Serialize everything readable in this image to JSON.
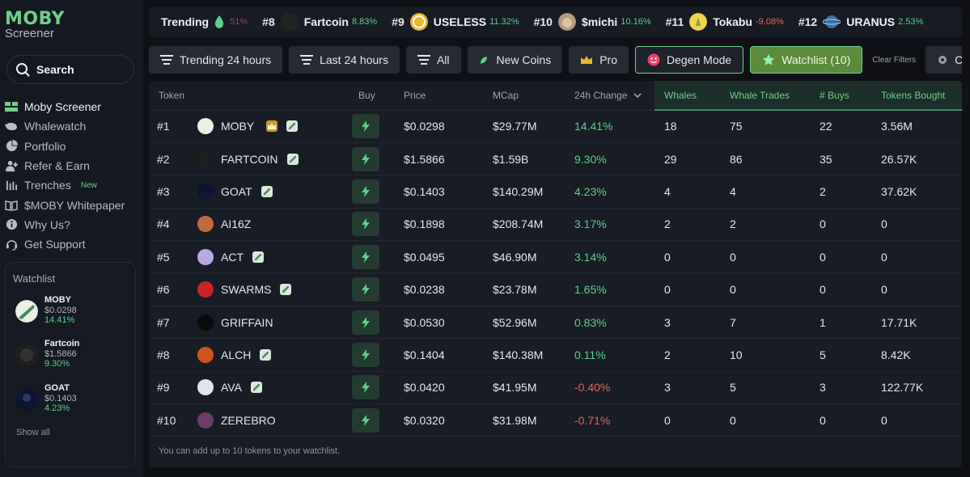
{
  "sidebar": {
    "logo_main": "MOBY",
    "logo_sub": "Screener",
    "search_label": "Search",
    "nav": [
      {
        "label": "Moby Screener",
        "icon": "moby-logo-icon"
      },
      {
        "label": "Whalewatch",
        "icon": "whale-icon"
      },
      {
        "label": "Portfolio",
        "icon": "pie-chart-icon"
      },
      {
        "label": "Refer & Earn",
        "icon": "person-add-icon"
      },
      {
        "label": "Trenches",
        "icon": "trench-icon",
        "tag": "New"
      },
      {
        "label": "$MOBY Whitepaper",
        "icon": "book-icon"
      },
      {
        "label": "Why Us?",
        "icon": "info-icon"
      },
      {
        "label": "Get Support",
        "icon": "headset-icon"
      }
    ],
    "watchlist": {
      "title": "Watchlist",
      "items": [
        {
          "name": "MOBY",
          "price": "$0.0298",
          "change": "14.41%"
        },
        {
          "name": "Fartcoin",
          "price": "$1.5866",
          "change": "9.30%"
        },
        {
          "name": "GOAT",
          "price": "$0.1403",
          "change": "4.23%"
        }
      ],
      "show_all": "Show all"
    }
  },
  "trending": {
    "label": "Trending",
    "faded_pct": "51%",
    "items": [
      {
        "rank": "#8",
        "name": "Fartcoin",
        "pct": "8.83%",
        "dir": "pos",
        "color": "#222222"
      },
      {
        "rank": "#9",
        "name": "USELESS",
        "pct": "11.32%",
        "dir": "pos",
        "color": "#e7b92f"
      },
      {
        "rank": "#10",
        "name": "$michi",
        "pct": "10.16%",
        "dir": "pos",
        "color": "#b79a7c"
      },
      {
        "rank": "#11",
        "name": "Tokabu",
        "pct": "-9.08%",
        "dir": "neg",
        "color": "#f0d44a"
      },
      {
        "rank": "#12",
        "name": "URANUS",
        "pct": "2.53%",
        "dir": "pos",
        "color": "#3c6f9d"
      }
    ]
  },
  "filters": {
    "trending24": "Trending 24 hours",
    "last24": "Last 24 hours",
    "all": "All",
    "new_coins": "New Coins",
    "pro": "Pro",
    "degen": "Degen Mode",
    "watchlist": "Watchlist (10)",
    "clear": "Clear Filters",
    "custom": "Custom"
  },
  "table": {
    "headers": {
      "token": "Token",
      "buy": "Buy",
      "price": "Price",
      "mcap": "MCap",
      "change": "24h Change",
      "whales": "Whales",
      "whale_trades": "Whale Trades",
      "buys": "# Buys",
      "tokens_bought": "Tokens Bought"
    },
    "rows": [
      {
        "rank": "#1",
        "name": "MOBY",
        "price": "$0.0298",
        "mcap": "$29.77M",
        "change": "14.41%",
        "dir": "pos",
        "whales": "18",
        "trades": "75",
        "buys": "22",
        "bought": "3.56M",
        "color": "#e9efe4"
      },
      {
        "rank": "#2",
        "name": "FARTCOIN",
        "price": "$1.5866",
        "mcap": "$1.59B",
        "change": "9.30%",
        "dir": "pos",
        "whales": "29",
        "trades": "86",
        "buys": "35",
        "bought": "26.57K",
        "color": "#1e1e1e"
      },
      {
        "rank": "#3",
        "name": "GOAT",
        "price": "$0.1403",
        "mcap": "$140.29M",
        "change": "4.23%",
        "dir": "pos",
        "whales": "4",
        "trades": "4",
        "buys": "2",
        "bought": "37.62K",
        "color": "#0d1630"
      },
      {
        "rank": "#4",
        "name": "AI16Z",
        "price": "$0.1898",
        "mcap": "$208.74M",
        "change": "3.17%",
        "dir": "pos",
        "whales": "2",
        "trades": "2",
        "buys": "0",
        "bought": "0",
        "color": "#c36a3a"
      },
      {
        "rank": "#5",
        "name": "ACT",
        "price": "$0.0495",
        "mcap": "$46.90M",
        "change": "3.14%",
        "dir": "pos",
        "whales": "0",
        "trades": "0",
        "buys": "0",
        "bought": "0",
        "color": "#b9a8e6"
      },
      {
        "rank": "#6",
        "name": "SWARMS",
        "price": "$0.0238",
        "mcap": "$23.78M",
        "change": "1.65%",
        "dir": "pos",
        "whales": "0",
        "trades": "0",
        "buys": "0",
        "bought": "0",
        "color": "#c8242a"
      },
      {
        "rank": "#7",
        "name": "GRIFFAIN",
        "price": "$0.0530",
        "mcap": "$52.96M",
        "change": "0.83%",
        "dir": "pos",
        "whales": "3",
        "trades": "7",
        "buys": "1",
        "bought": "17.71K",
        "color": "#0b0b0b"
      },
      {
        "rank": "#8",
        "name": "ALCH",
        "price": "$0.1404",
        "mcap": "$140.38M",
        "change": "0.11%",
        "dir": "pos",
        "whales": "2",
        "trades": "10",
        "buys": "5",
        "bought": "8.42K",
        "color": "#d0531e"
      },
      {
        "rank": "#9",
        "name": "AVA",
        "price": "$0.0420",
        "mcap": "$41.95M",
        "change": "-0.40%",
        "dir": "neg",
        "whales": "3",
        "trades": "5",
        "buys": "3",
        "bought": "122.77K",
        "color": "#dfe4ee"
      },
      {
        "rank": "#10",
        "name": "ZEREBRO",
        "price": "$0.0320",
        "mcap": "$31.98M",
        "change": "-0.71%",
        "dir": "neg",
        "whales": "0",
        "trades": "0",
        "buys": "0",
        "bought": "0",
        "color": "#6b3d6c"
      }
    ],
    "footer_note": "You can add up to 10 tokens to your watchlist."
  }
}
